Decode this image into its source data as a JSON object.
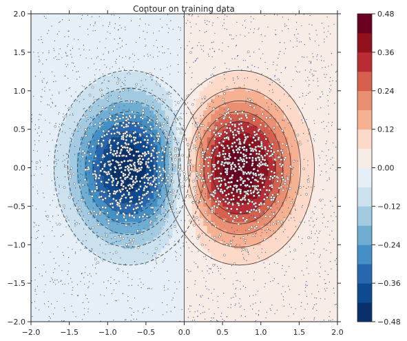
{
  "chart_data": {
    "type": "contour",
    "title": "Contour on training data",
    "xlabel": "",
    "ylabel": "",
    "xlim": [
      -2.0,
      2.0
    ],
    "ylim": [
      -2.0,
      2.0
    ],
    "xticks": [
      "−2.0",
      "−1.5",
      "−1.0",
      "−0.5",
      "0.0",
      "0.5",
      "1.0",
      "1.5",
      "2.0"
    ],
    "yticks": [
      "2.0",
      "1.5",
      "1.0",
      "0.5",
      "0.0",
      "−0.5",
      "−1.0",
      "−1.5",
      "−2.0"
    ],
    "colorbar": {
      "colormap": "RdBu_r",
      "range": [
        -0.48,
        0.48
      ],
      "levels": [
        -0.48,
        -0.42,
        -0.36,
        -0.3,
        -0.24,
        -0.18,
        -0.12,
        -0.06,
        0.0,
        0.06,
        0.12,
        0.18,
        0.24,
        0.3,
        0.36,
        0.42,
        0.48
      ],
      "tick_labels": [
        "0.48",
        "0.36",
        "0.24",
        "0.12",
        "0.00",
        "−0.12",
        "−0.24",
        "−0.36",
        "−0.48"
      ],
      "colors": [
        "#08306b",
        "#0d4a8f",
        "#2767b0",
        "#4290c5",
        "#6fadd2",
        "#a2cbe2",
        "#cbe1ee",
        "#e6eff5",
        "#f8ece6",
        "#fcd9c8",
        "#f6b193",
        "#eb8f72",
        "#d6604d",
        "#bb2b34",
        "#93111f",
        "#6b0020"
      ]
    },
    "function": "peak at (0.72, 0.0) value ≈ 0.48, trough at (−0.72, 0.0) value ≈ −0.48; zero contour at x = 0",
    "contour_levels_drawn": [
      -0.36,
      -0.3,
      -0.24,
      -0.18,
      -0.12,
      -0.06,
      0.0,
      0.06,
      0.12,
      0.18,
      0.24,
      0.3,
      0.36,
      0.42
    ],
    "scatter": "training data points (white markers with dark edges) densely clustered around the two peaks, sparse background dots elsewhere"
  }
}
